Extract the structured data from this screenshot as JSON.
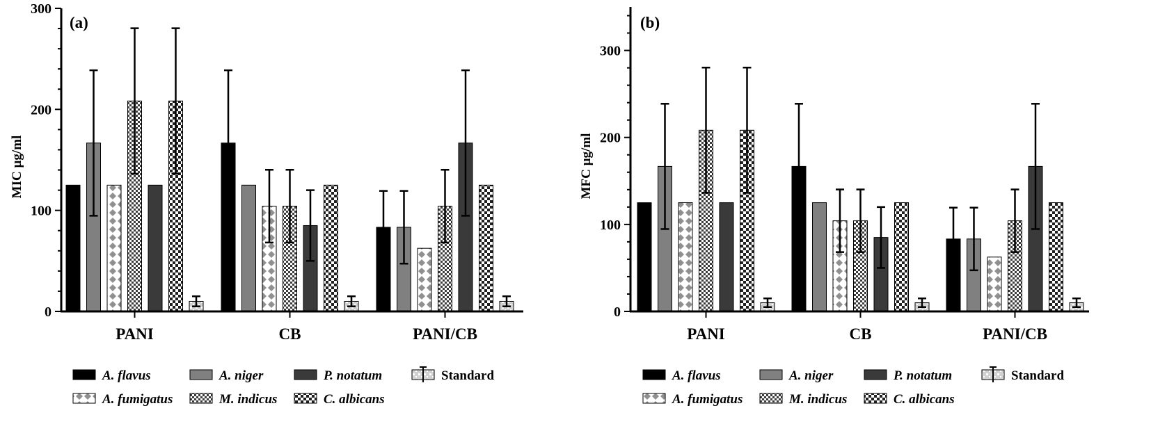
{
  "series_styles": [
    {
      "name": "A. flavus",
      "fill": "#000000",
      "pattern": "solid",
      "italic": true
    },
    {
      "name": "A. niger",
      "fill": "#808080",
      "pattern": "solid",
      "italic": true
    },
    {
      "name": "A. fumigatus",
      "fill": "#ffffff",
      "pattern": "diamond",
      "italic": true
    },
    {
      "name": "M. indicus",
      "fill": "#ffffff",
      "pattern": "dense-check",
      "italic": true
    },
    {
      "name": "P. notatum",
      "fill": "#3a3a3a",
      "pattern": "solid",
      "italic": true
    },
    {
      "name": "C. albicans",
      "fill": "#ffffff",
      "pattern": "check",
      "italic": true
    },
    {
      "name": "Standard",
      "fill": "#ffffff",
      "pattern": "standard",
      "italic": false
    }
  ],
  "legend_rows": [
    [
      "A. flavus",
      "A. niger",
      "P. notatum",
      "Standard"
    ],
    [
      "A. fumigatus",
      "M. indicus",
      "C. albicans"
    ]
  ],
  "chart_data": [
    {
      "type": "bar",
      "panel_label": "(a)",
      "title": "",
      "xlabel": "",
      "ylabel": "MIC µg/ml",
      "categories": [
        "PANI",
        "CB",
        "PANI/CB"
      ],
      "ylim": [
        0,
        300
      ],
      "yticks": [
        0,
        100,
        200,
        300
      ],
      "legend_position": "bottom",
      "series": [
        {
          "name": "A. flavus",
          "values": [
            125,
            166.7,
            83.3
          ],
          "errors": [
            0,
            72,
            36
          ]
        },
        {
          "name": "A. niger",
          "values": [
            166.7,
            125,
            83.3
          ],
          "errors": [
            72,
            0,
            36
          ]
        },
        {
          "name": "A. fumigatus",
          "values": [
            125,
            104.2,
            62.5
          ],
          "errors": [
            0,
            36,
            0
          ]
        },
        {
          "name": "M. indicus",
          "values": [
            208.3,
            104.2,
            104.2
          ],
          "errors": [
            72,
            36,
            36
          ]
        },
        {
          "name": "P. notatum",
          "values": [
            125,
            85,
            166.7
          ],
          "errors": [
            0,
            35,
            72
          ]
        },
        {
          "name": "C. albicans",
          "values": [
            208.3,
            125,
            125
          ],
          "errors": [
            72,
            0,
            0
          ]
        },
        {
          "name": "Standard",
          "values": [
            10,
            10,
            10
          ],
          "errors": [
            5,
            5,
            5
          ]
        }
      ]
    },
    {
      "type": "bar",
      "panel_label": "(b)",
      "title": "",
      "xlabel": "",
      "ylabel": "MFC µg/ml",
      "categories": [
        "PANI",
        "CB",
        "PANI/CB"
      ],
      "ylim": [
        0,
        350
      ],
      "yticks": [
        0,
        100,
        200,
        300
      ],
      "legend_position": "bottom",
      "series": [
        {
          "name": "A. flavus",
          "values": [
            125,
            166.7,
            83.3
          ],
          "errors": [
            0,
            72,
            36
          ]
        },
        {
          "name": "A. niger",
          "values": [
            166.7,
            125,
            83.3
          ],
          "errors": [
            72,
            0,
            36
          ]
        },
        {
          "name": "A. fumigatus",
          "values": [
            125,
            104.2,
            62.5
          ],
          "errors": [
            0,
            36,
            0
          ]
        },
        {
          "name": "M. indicus",
          "values": [
            208.3,
            104.2,
            104.2
          ],
          "errors": [
            72,
            36,
            36
          ]
        },
        {
          "name": "P. notatum",
          "values": [
            125,
            85,
            166.7
          ],
          "errors": [
            0,
            35,
            72
          ]
        },
        {
          "name": "C. albicans",
          "values": [
            208.3,
            125,
            125
          ],
          "errors": [
            72,
            0,
            0
          ]
        },
        {
          "name": "Standard",
          "values": [
            10,
            10,
            10
          ],
          "errors": [
            5,
            5,
            5
          ]
        }
      ]
    }
  ]
}
